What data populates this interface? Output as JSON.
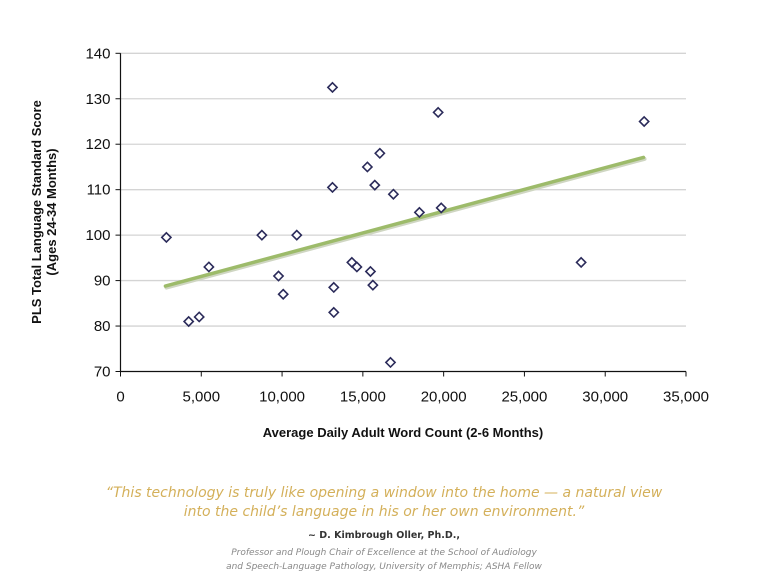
{
  "chart_data": {
    "type": "scatter",
    "title": "",
    "xlabel": "Average Daily Adult Word Count (2-6 Months)",
    "ylabel_lines": [
      "PLS Total Language Standard Score",
      "(Ages 24-34 Months)"
    ],
    "xlim": [
      0,
      35000
    ],
    "ylim": [
      70,
      140
    ],
    "x_ticks": [
      0,
      5000,
      10000,
      15000,
      20000,
      25000,
      30000,
      35000
    ],
    "x_tick_labels": [
      "0",
      "5,000",
      "10,000",
      "15,000",
      "20,000",
      "25,000",
      "30,000",
      "35,000"
    ],
    "y_ticks": [
      70,
      80,
      90,
      100,
      110,
      120,
      130,
      140
    ],
    "y_tick_labels": [
      "70",
      "80",
      "90",
      "100",
      "110",
      "120",
      "130",
      "140"
    ],
    "grid": "horizontal",
    "marker": "open-diamond",
    "marker_color": "#2b2b5a",
    "trendline_color": "#9dbb6a",
    "legend": "none",
    "points": [
      {
        "x": 2840,
        "y": 99.5
      },
      {
        "x": 4220,
        "y": 81
      },
      {
        "x": 4870,
        "y": 82
      },
      {
        "x": 5470,
        "y": 93
      },
      {
        "x": 8750,
        "y": 100
      },
      {
        "x": 9780,
        "y": 91
      },
      {
        "x": 10070,
        "y": 87
      },
      {
        "x": 10910,
        "y": 100
      },
      {
        "x": 13120,
        "y": 132.5
      },
      {
        "x": 13120,
        "y": 110.5
      },
      {
        "x": 13200,
        "y": 88.5
      },
      {
        "x": 13200,
        "y": 83
      },
      {
        "x": 14320,
        "y": 94
      },
      {
        "x": 14630,
        "y": 93
      },
      {
        "x": 15280,
        "y": 115
      },
      {
        "x": 15470,
        "y": 92
      },
      {
        "x": 15620,
        "y": 89
      },
      {
        "x": 15740,
        "y": 111
      },
      {
        "x": 16050,
        "y": 118
      },
      {
        "x": 16710,
        "y": 72
      },
      {
        "x": 16890,
        "y": 109
      },
      {
        "x": 18500,
        "y": 105
      },
      {
        "x": 19660,
        "y": 127
      },
      {
        "x": 19850,
        "y": 106
      },
      {
        "x": 28510,
        "y": 94
      },
      {
        "x": 32410,
        "y": 125
      }
    ],
    "trendline": {
      "x": [
        2780,
        32370
      ],
      "y": [
        88.8,
        117.1
      ]
    }
  },
  "quote": {
    "line1": "“This technology is truly like opening a window into the home — a natural view",
    "line2": "into the child’s language in his or her own environment.”",
    "color": "#d4b05a"
  },
  "attribution": {
    "name": "~ D. Kimbrough Oller, Ph.D.,",
    "title_line1": "Professor and Plough Chair of Excellence at the School of Audiology",
    "title_line2": "and Speech-Language Pathology, University of Memphis; ASHA Fellow"
  }
}
